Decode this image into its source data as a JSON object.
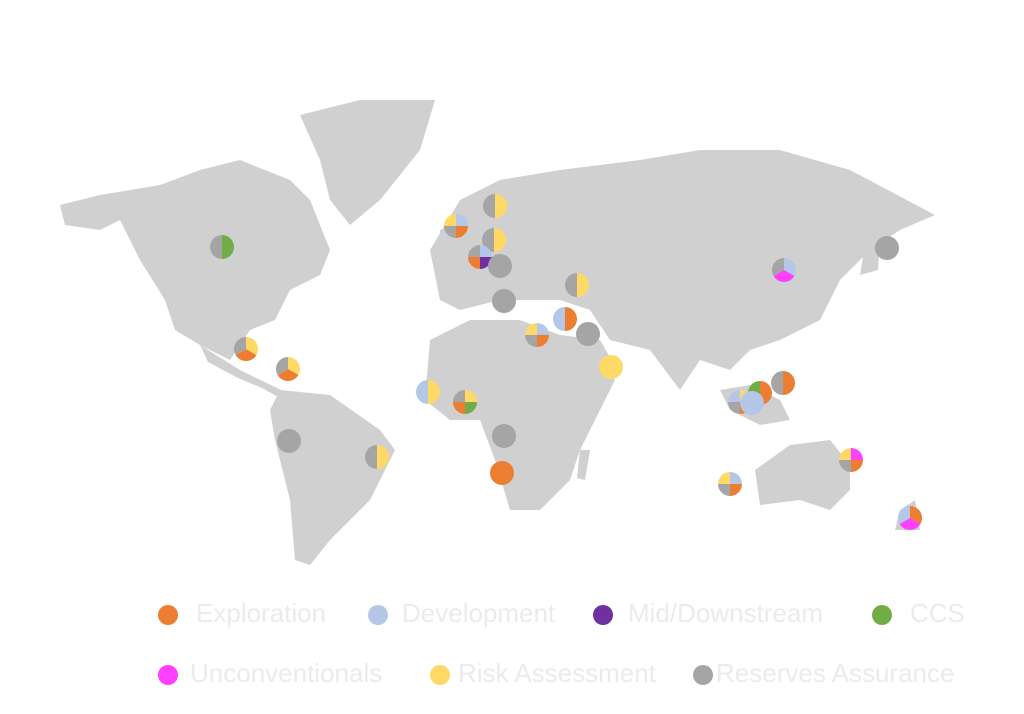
{
  "legend": {
    "items": [
      {
        "name": "Exploration",
        "color": "#ed7d31"
      },
      {
        "name": "Development",
        "color": "#b4c7e7"
      },
      {
        "name": "Mid/Downstream",
        "color": "#7030a0"
      },
      {
        "name": "CCS",
        "color": "#70ad47"
      },
      {
        "name": "Unconventionals",
        "color": "#ff40ff"
      },
      {
        "name": "Risk Assessment",
        "color": "#ffd966"
      },
      {
        "name": "Reserves Assurance",
        "color": "#a5a5a5"
      }
    ]
  }
}
